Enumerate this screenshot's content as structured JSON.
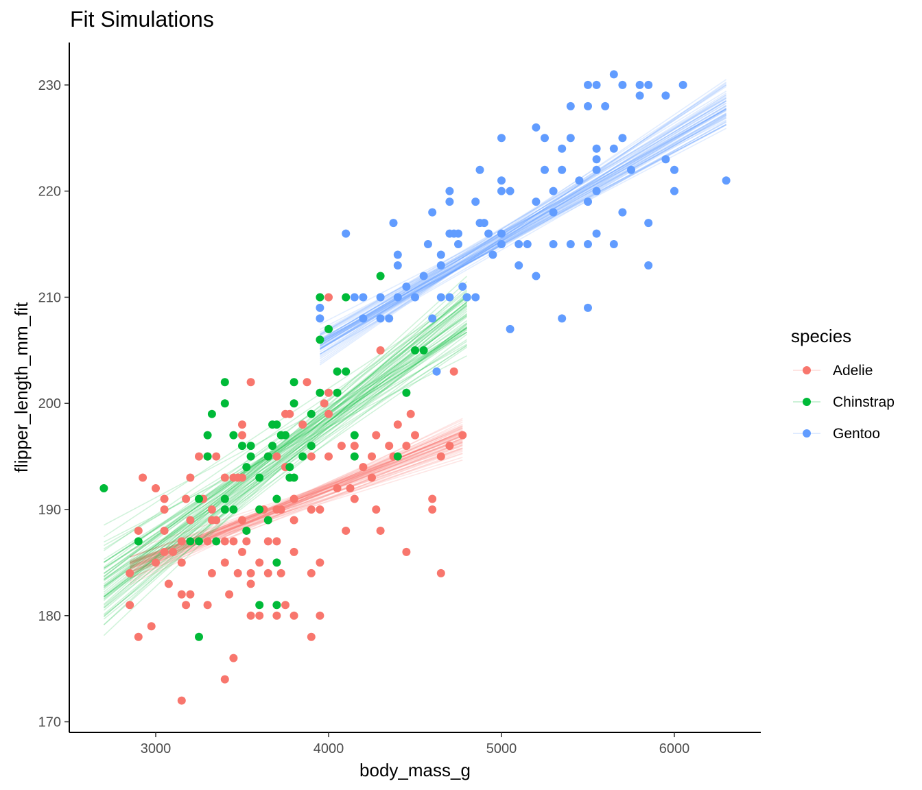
{
  "chart_data": {
    "type": "scatter",
    "title": "Fit Simulations",
    "xlabel": "body_mass_g",
    "ylabel": "flipper_length_mm_fit",
    "xlim": [
      2500,
      6500
    ],
    "ylim": [
      169,
      234
    ],
    "x_ticks": [
      3000,
      4000,
      5000,
      6000
    ],
    "y_ticks": [
      170,
      180,
      190,
      200,
      210,
      220,
      230
    ],
    "grid": false,
    "legend": {
      "title": "species",
      "position": "right"
    },
    "series": [
      {
        "name": "Adelie",
        "color": "#F8766D",
        "fit_band": {
          "x0": 2850,
          "x1": 4775,
          "center": [
            184.5,
            196.7
          ],
          "spread_start": 1.5,
          "spread_end": 2.0,
          "lines": 60
        },
        "points": [
          [
            2850,
            184
          ],
          [
            2850,
            181
          ],
          [
            2900,
            188
          ],
          [
            2900,
            178
          ],
          [
            2925,
            193
          ],
          [
            2975,
            179
          ],
          [
            3000,
            185
          ],
          [
            3000,
            192
          ],
          [
            3050,
            191
          ],
          [
            3050,
            190
          ],
          [
            3050,
            188
          ],
          [
            3050,
            186
          ],
          [
            3075,
            183
          ],
          [
            3100,
            186
          ],
          [
            3150,
            185
          ],
          [
            3150,
            182
          ],
          [
            3150,
            172
          ],
          [
            3150,
            187
          ],
          [
            3175,
            191
          ],
          [
            3175,
            181
          ],
          [
            3200,
            193
          ],
          [
            3200,
            189
          ],
          [
            3200,
            182
          ],
          [
            3250,
            195
          ],
          [
            3275,
            191
          ],
          [
            3300,
            187
          ],
          [
            3300,
            181
          ],
          [
            3300,
            195
          ],
          [
            3325,
            190
          ],
          [
            3325,
            184
          ],
          [
            3325,
            189
          ],
          [
            3350,
            195
          ],
          [
            3350,
            189
          ],
          [
            3400,
            193
          ],
          [
            3400,
            185
          ],
          [
            3400,
            187
          ],
          [
            3400,
            174
          ],
          [
            3425,
            182
          ],
          [
            3450,
            176
          ],
          [
            3450,
            193
          ],
          [
            3450,
            187
          ],
          [
            3475,
            193
          ],
          [
            3475,
            184
          ],
          [
            3500,
            198
          ],
          [
            3500,
            193
          ],
          [
            3500,
            186
          ],
          [
            3500,
            197
          ],
          [
            3500,
            189
          ],
          [
            3525,
            187
          ],
          [
            3550,
            202
          ],
          [
            3550,
            184
          ],
          [
            3550,
            183
          ],
          [
            3550,
            180
          ],
          [
            3600,
            190
          ],
          [
            3600,
            185
          ],
          [
            3600,
            180
          ],
          [
            3625,
            190
          ],
          [
            3650,
            195
          ],
          [
            3650,
            184
          ],
          [
            3650,
            187
          ],
          [
            3700,
            190
          ],
          [
            3700,
            187
          ],
          [
            3700,
            180
          ],
          [
            3700,
            195
          ],
          [
            3725,
            190
          ],
          [
            3725,
            184
          ],
          [
            3750,
            199
          ],
          [
            3750,
            194
          ],
          [
            3750,
            181
          ],
          [
            3775,
            199
          ],
          [
            3800,
            191
          ],
          [
            3800,
            180
          ],
          [
            3800,
            189
          ],
          [
            3800,
            186
          ],
          [
            3850,
            198
          ],
          [
            3875,
            202
          ],
          [
            3900,
            195
          ],
          [
            3900,
            190
          ],
          [
            3900,
            184
          ],
          [
            3900,
            178
          ],
          [
            3950,
            190
          ],
          [
            3950,
            185
          ],
          [
            3950,
            180
          ],
          [
            3975,
            200
          ],
          [
            4000,
            201
          ],
          [
            4000,
            199
          ],
          [
            4000,
            195
          ],
          [
            4000,
            210
          ],
          [
            4050,
            192
          ],
          [
            4075,
            196
          ],
          [
            4100,
            188
          ],
          [
            4125,
            192
          ],
          [
            4150,
            196
          ],
          [
            4150,
            191
          ],
          [
            4200,
            194
          ],
          [
            4250,
            193
          ],
          [
            4250,
            195
          ],
          [
            4275,
            190
          ],
          [
            4275,
            197
          ],
          [
            4300,
            188
          ],
          [
            4300,
            205
          ],
          [
            4350,
            196
          ],
          [
            4375,
            195
          ],
          [
            4400,
            198
          ],
          [
            4450,
            196
          ],
          [
            4450,
            186
          ],
          [
            4475,
            199
          ],
          [
            4500,
            197
          ],
          [
            4600,
            191
          ],
          [
            4600,
            190
          ],
          [
            4650,
            195
          ],
          [
            4650,
            184
          ],
          [
            4700,
            196
          ],
          [
            4725,
            203
          ],
          [
            4775,
            197
          ]
        ]
      },
      {
        "name": "Chinstrap",
        "color": "#00BA38",
        "fit_band": {
          "x0": 2700,
          "x1": 4800,
          "center": [
            182.8,
            208.5
          ],
          "spread_start": 4.5,
          "spread_end": 4.5,
          "lines": 60
        },
        "points": [
          [
            2700,
            192
          ],
          [
            2900,
            187
          ],
          [
            3200,
            187
          ],
          [
            3250,
            191
          ],
          [
            3250,
            178
          ],
          [
            3250,
            187
          ],
          [
            3300,
            197
          ],
          [
            3300,
            195
          ],
          [
            3325,
            199
          ],
          [
            3350,
            187
          ],
          [
            3400,
            202
          ],
          [
            3400,
            200
          ],
          [
            3400,
            191
          ],
          [
            3400,
            190
          ],
          [
            3450,
            197
          ],
          [
            3450,
            190
          ],
          [
            3500,
            196
          ],
          [
            3525,
            194
          ],
          [
            3525,
            188
          ],
          [
            3550,
            196
          ],
          [
            3550,
            195
          ],
          [
            3600,
            190
          ],
          [
            3600,
            181
          ],
          [
            3600,
            193
          ],
          [
            3650,
            195
          ],
          [
            3650,
            189
          ],
          [
            3675,
            196
          ],
          [
            3675,
            198
          ],
          [
            3700,
            185
          ],
          [
            3700,
            181
          ],
          [
            3700,
            191
          ],
          [
            3700,
            198
          ],
          [
            3725,
            197
          ],
          [
            3750,
            197
          ],
          [
            3775,
            194
          ],
          [
            3775,
            193
          ],
          [
            3800,
            202
          ],
          [
            3800,
            200
          ],
          [
            3800,
            193
          ],
          [
            3850,
            195
          ],
          [
            3900,
            196
          ],
          [
            3900,
            199
          ],
          [
            3950,
            210
          ],
          [
            3950,
            206
          ],
          [
            3950,
            201
          ],
          [
            4000,
            207
          ],
          [
            4050,
            201
          ],
          [
            4050,
            203
          ],
          [
            4100,
            203
          ],
          [
            4100,
            210
          ],
          [
            4150,
            197
          ],
          [
            4150,
            195
          ],
          [
            4300,
            212
          ],
          [
            4400,
            195
          ],
          [
            4450,
            201
          ],
          [
            4500,
            205
          ],
          [
            4550,
            205
          ],
          [
            4800,
            210
          ]
        ]
      },
      {
        "name": "Gentoo",
        "color": "#619CFF",
        "fit_band": {
          "x0": 3950,
          "x1": 6300,
          "center": [
            205.5,
            228.0
          ],
          "spread_start": 1.8,
          "spread_end": 2.5,
          "lines": 60
        },
        "points": [
          [
            3950,
            208
          ],
          [
            3950,
            209
          ],
          [
            4100,
            216
          ],
          [
            4150,
            210
          ],
          [
            4200,
            210
          ],
          [
            4200,
            208
          ],
          [
            4300,
            208
          ],
          [
            4300,
            210
          ],
          [
            4350,
            208
          ],
          [
            4375,
            217
          ],
          [
            4400,
            214
          ],
          [
            4400,
            213
          ],
          [
            4400,
            210
          ],
          [
            4450,
            211
          ],
          [
            4500,
            210
          ],
          [
            4550,
            212
          ],
          [
            4575,
            215
          ],
          [
            4600,
            208
          ],
          [
            4600,
            218
          ],
          [
            4625,
            203
          ],
          [
            4650,
            210
          ],
          [
            4650,
            213
          ],
          [
            4650,
            214
          ],
          [
            4700,
            220
          ],
          [
            4700,
            219
          ],
          [
            4700,
            210
          ],
          [
            4700,
            216
          ],
          [
            4725,
            216
          ],
          [
            4750,
            216
          ],
          [
            4750,
            215
          ],
          [
            4775,
            211
          ],
          [
            4800,
            210
          ],
          [
            4850,
            219
          ],
          [
            4850,
            210
          ],
          [
            4875,
            222
          ],
          [
            4875,
            217
          ],
          [
            4900,
            217
          ],
          [
            4925,
            216
          ],
          [
            4950,
            214
          ],
          [
            5000,
            225
          ],
          [
            5000,
            221
          ],
          [
            5000,
            220
          ],
          [
            5000,
            216
          ],
          [
            5000,
            215
          ],
          [
            5050,
            220
          ],
          [
            5050,
            207
          ],
          [
            5100,
            215
          ],
          [
            5100,
            213
          ],
          [
            5150,
            215
          ],
          [
            5200,
            226
          ],
          [
            5200,
            219
          ],
          [
            5200,
            212
          ],
          [
            5250,
            225
          ],
          [
            5250,
            222
          ],
          [
            5300,
            220
          ],
          [
            5300,
            215
          ],
          [
            5300,
            218
          ],
          [
            5350,
            224
          ],
          [
            5350,
            222
          ],
          [
            5350,
            208
          ],
          [
            5400,
            228
          ],
          [
            5400,
            225
          ],
          [
            5400,
            215
          ],
          [
            5450,
            221
          ],
          [
            5500,
            230
          ],
          [
            5500,
            228
          ],
          [
            5500,
            219
          ],
          [
            5500,
            215
          ],
          [
            5500,
            209
          ],
          [
            5550,
            230
          ],
          [
            5550,
            224
          ],
          [
            5550,
            223
          ],
          [
            5550,
            222
          ],
          [
            5550,
            220
          ],
          [
            5550,
            216
          ],
          [
            5600,
            228
          ],
          [
            5650,
            231
          ],
          [
            5650,
            224
          ],
          [
            5650,
            215
          ],
          [
            5700,
            230
          ],
          [
            5700,
            225
          ],
          [
            5700,
            218
          ],
          [
            5750,
            222
          ],
          [
            5800,
            230
          ],
          [
            5800,
            229
          ],
          [
            5850,
            230
          ],
          [
            5850,
            217
          ],
          [
            5850,
            213
          ],
          [
            5950,
            229
          ],
          [
            5950,
            223
          ],
          [
            6000,
            222
          ],
          [
            6000,
            220
          ],
          [
            6050,
            230
          ],
          [
            6300,
            221
          ]
        ]
      }
    ]
  }
}
